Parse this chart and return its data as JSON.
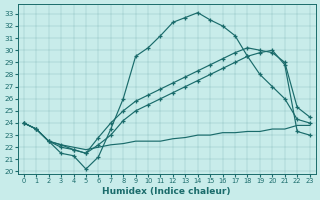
{
  "xlabel": "Humidex (Indice chaleur)",
  "xlim": [
    -0.5,
    23.5
  ],
  "ylim": [
    19.8,
    33.8
  ],
  "yticks": [
    20,
    21,
    22,
    23,
    24,
    25,
    26,
    27,
    28,
    29,
    30,
    31,
    32,
    33
  ],
  "xticks": [
    0,
    1,
    2,
    3,
    4,
    5,
    6,
    7,
    8,
    9,
    10,
    11,
    12,
    13,
    14,
    15,
    16,
    17,
    18,
    19,
    20,
    21,
    22,
    23
  ],
  "bg_color": "#c8ecea",
  "line_color": "#1a6b6b",
  "line1_x": [
    0,
    1,
    2,
    3,
    4,
    5,
    6,
    7,
    8,
    9,
    10,
    11,
    12,
    13,
    14,
    15,
    16,
    17,
    18,
    19,
    20,
    21,
    22,
    23
  ],
  "line1_y": [
    24.0,
    23.5,
    22.5,
    21.5,
    21.3,
    20.2,
    21.2,
    23.5,
    26.0,
    29.5,
    30.2,
    31.2,
    32.3,
    32.7,
    33.1,
    32.5,
    32.0,
    31.2,
    29.5,
    28.0,
    27.0,
    26.0,
    24.3,
    24.0
  ],
  "line2_x": [
    0,
    1,
    2,
    3,
    4,
    5,
    6,
    7,
    8,
    9,
    10,
    11,
    12,
    13,
    14,
    15,
    16,
    17,
    18,
    19,
    20,
    21,
    22,
    23
  ],
  "line2_y": [
    24.0,
    23.5,
    22.5,
    22.2,
    21.8,
    21.5,
    22.8,
    24.0,
    25.0,
    25.8,
    26.3,
    26.8,
    27.3,
    27.8,
    28.3,
    28.8,
    29.3,
    29.8,
    30.2,
    30.0,
    29.8,
    29.0,
    25.3,
    24.5
  ],
  "line3_x": [
    0,
    1,
    2,
    3,
    4,
    5,
    6,
    7,
    8,
    9,
    10,
    11,
    12,
    13,
    14,
    15,
    16,
    17,
    18,
    19,
    20,
    21,
    22,
    23
  ],
  "line3_y": [
    24.0,
    23.5,
    22.5,
    22.0,
    21.8,
    21.5,
    22.2,
    23.0,
    24.2,
    25.0,
    25.5,
    26.0,
    26.5,
    27.0,
    27.5,
    28.0,
    28.5,
    29.0,
    29.5,
    29.8,
    30.0,
    28.8,
    23.3,
    23.0
  ],
  "line4_x": [
    0,
    1,
    2,
    3,
    4,
    5,
    6,
    7,
    8,
    9,
    10,
    11,
    12,
    13,
    14,
    15,
    16,
    17,
    18,
    19,
    20,
    21,
    22,
    23
  ],
  "line4_y": [
    24.0,
    23.5,
    22.5,
    22.2,
    22.0,
    21.8,
    22.0,
    22.2,
    22.3,
    22.5,
    22.5,
    22.5,
    22.7,
    22.8,
    23.0,
    23.0,
    23.2,
    23.2,
    23.3,
    23.3,
    23.5,
    23.5,
    23.8,
    23.8
  ]
}
